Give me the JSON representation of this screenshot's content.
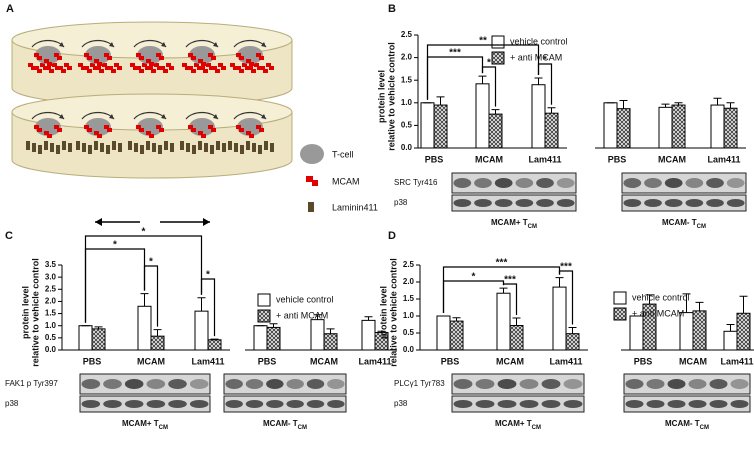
{
  "diagram": {
    "panel": "A",
    "legend": [
      "T-cell",
      "MCAM",
      "Laminin411"
    ]
  },
  "chart_data": [
    {
      "type": "bar",
      "panel": "B",
      "ylabel": [
        "protein level",
        "relative to vehicle control"
      ],
      "categories": [
        "PBS",
        "MCAM",
        "Lam411",
        "PBS",
        "MCAM",
        "Lam411"
      ],
      "groups": [
        {
          "main": "MCAM+ T",
          "sub": "CM"
        },
        {
          "main": "MCAM- T",
          "sub": "CM"
        }
      ],
      "series": [
        {
          "name": "vehicle control",
          "color": "#ffffff",
          "values": [
            1.0,
            1.42,
            1.4,
            1.0,
            0.9,
            0.95
          ],
          "errors": [
            0,
            0.17,
            0.15,
            0,
            0.07,
            0.15
          ]
        },
        {
          "name": "+ anti MCAM",
          "color": "#444444",
          "pattern": "crosshatch",
          "values": [
            0.95,
            0.75,
            0.77,
            0.87,
            0.95,
            0.88
          ],
          "errors": [
            0.18,
            0.1,
            0.12,
            0.18,
            0.05,
            0.12
          ]
        }
      ],
      "ylim": [
        0,
        2.5
      ],
      "yticks": [
        {
          "value": 0,
          "label": "0.0"
        },
        {
          "value": 0.5,
          "label": "0.5"
        },
        {
          "value": 1,
          "label": "1.0"
        },
        {
          "value": 1.5,
          "label": "1.5"
        },
        {
          "value": 2,
          "label": "2.0"
        },
        {
          "value": 2.5,
          "label": "2.5"
        }
      ],
      "annotations": [
        "***",
        "**",
        "*",
        "*"
      ],
      "blot_labels": [
        "SRC Tyr416",
        "p38"
      ]
    },
    {
      "type": "bar",
      "panel": "C",
      "ylabel": [
        "protein level",
        "relative to vehicle control"
      ],
      "categories": [
        "PBS",
        "MCAM",
        "Lam411",
        "PBS",
        "MCAM",
        "Lam411"
      ],
      "groups": [
        {
          "main": "MCAM+ T",
          "sub": "CM"
        },
        {
          "main": "MCAM- T",
          "sub": "CM"
        }
      ],
      "series": [
        {
          "name": "vehicle control",
          "color": "#ffffff",
          "values": [
            1.0,
            1.8,
            1.6,
            1.0,
            1.25,
            1.22
          ],
          "errors": [
            0,
            0.52,
            0.55,
            0,
            0.2,
            0.15
          ]
        },
        {
          "name": "+ anti MCAM",
          "color": "#444444",
          "pattern": "crosshatch",
          "values": [
            0.87,
            0.57,
            0.42,
            0.93,
            0.67,
            0.72
          ],
          "errors": [
            0.08,
            0.27,
            0.03,
            0.15,
            0.2,
            0.05
          ]
        }
      ],
      "ylim": [
        0,
        3.5
      ],
      "yticks": [
        {
          "value": 0,
          "label": "0.0"
        },
        {
          "value": 0.5,
          "label": "0.5"
        },
        {
          "value": 1,
          "label": "1.0"
        },
        {
          "value": 1.5,
          "label": "1.5"
        },
        {
          "value": 2,
          "label": "2.0"
        },
        {
          "value": 2.5,
          "label": "2.5"
        },
        {
          "value": 3,
          "label": "3.0"
        },
        {
          "value": 3.5,
          "label": "3.5"
        }
      ],
      "annotations": [
        "*",
        "*",
        "*",
        "*"
      ],
      "blot_labels": [
        "FAK1 p Tyr397",
        "p38"
      ]
    },
    {
      "type": "bar",
      "panel": "D",
      "ylabel": [
        "protein level",
        "relative to vehicle control"
      ],
      "categories": [
        "PBS",
        "MCAM",
        "Lam411",
        "PBS",
        "MCAM",
        "Lam411"
      ],
      "groups": [
        {
          "main": "MCAM+ T",
          "sub": "CM"
        },
        {
          "main": "MCAM- T",
          "sub": "CM"
        }
      ],
      "series": [
        {
          "name": "vehicle control",
          "color": "#ffffff",
          "values": [
            1.0,
            1.67,
            1.85,
            1.0,
            1.1,
            0.55
          ],
          "errors": [
            0,
            0.15,
            0.28,
            0,
            0.55,
            0.2
          ]
        },
        {
          "name": "+ anti MCAM",
          "color": "#444444",
          "pattern": "crosshatch",
          "values": [
            0.85,
            0.72,
            0.48,
            1.35,
            1.15,
            1.08
          ],
          "errors": [
            0.1,
            0.22,
            0.18,
            0.27,
            0.25,
            0.5
          ]
        }
      ],
      "ylim": [
        0,
        2.5
      ],
      "yticks": [
        {
          "value": 0,
          "label": "0.0"
        },
        {
          "value": 0.5,
          "label": "0.5"
        },
        {
          "value": 1,
          "label": "1.0"
        },
        {
          "value": 1.5,
          "label": "1.5"
        },
        {
          "value": 2,
          "label": "2.0"
        },
        {
          "value": 2.5,
          "label": "2.5"
        }
      ],
      "annotations": [
        "*",
        "***",
        "***",
        "***"
      ],
      "blot_labels": [
        "PLCγ1 Tyr783",
        "p38"
      ]
    }
  ]
}
